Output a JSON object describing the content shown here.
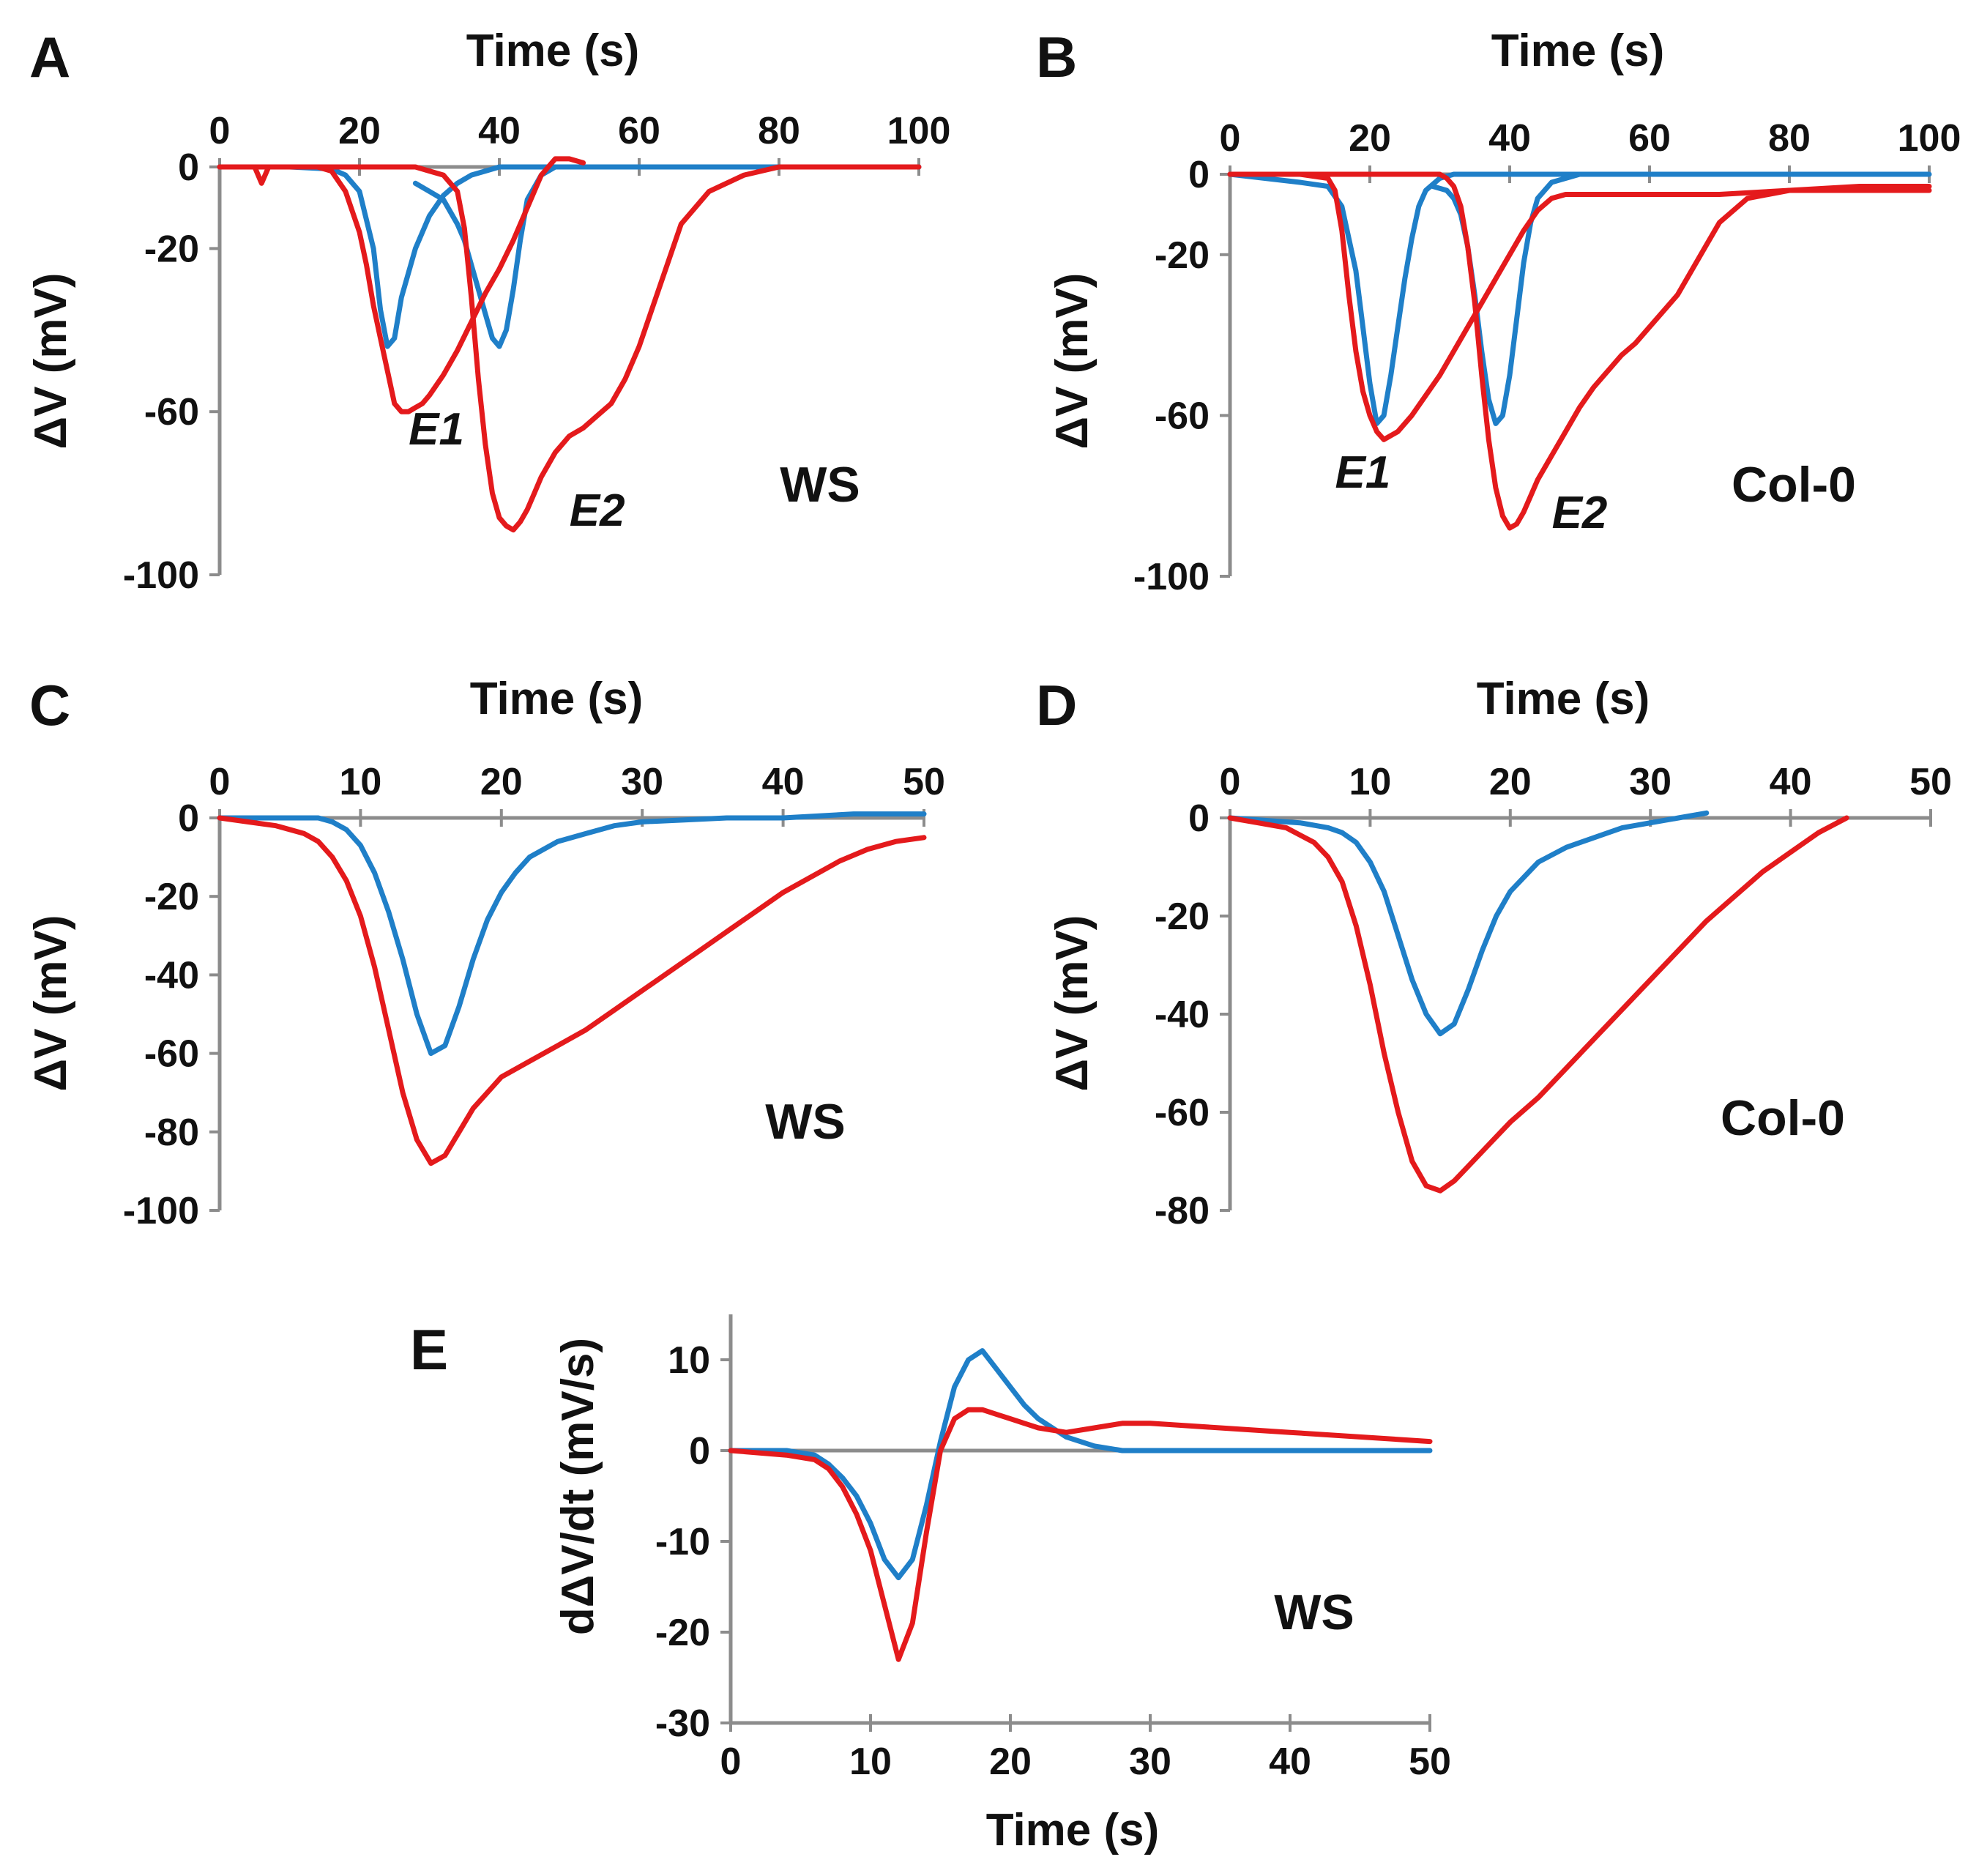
{
  "colors": {
    "control": "#1f7fc8",
    "treated": "#e41a1c",
    "axis": "#8c8c8c"
  },
  "chart_data": [
    {
      "panel": "A",
      "type": "line",
      "strain": "WS",
      "xlabel": "Time (s)",
      "ylabel": "ΔV (mV)",
      "xlim": [
        0,
        100
      ],
      "ylim": [
        -100,
        0
      ],
      "xticks": [
        0,
        20,
        40,
        60,
        80,
        100
      ],
      "yticks": [
        0,
        -20,
        -60,
        -100
      ],
      "x_axis_position": "top",
      "annotations": [
        {
          "text": "E1",
          "x": 31,
          "y": -68
        },
        {
          "text": "E2",
          "x": 54,
          "y": -88
        }
      ],
      "series": [
        {
          "name": "blue trace E1",
          "color": "#1f7fc8",
          "x": [
            0,
            10,
            16,
            18,
            20,
            22,
            23,
            24,
            25,
            26,
            28,
            30,
            32,
            34,
            36,
            38,
            40,
            42,
            45,
            50,
            60,
            80,
            100
          ],
          "y": [
            0,
            0,
            -0.5,
            -2,
            -6,
            -20,
            -35,
            -44,
            -42,
            -32,
            -20,
            -12,
            -7,
            -4,
            -2,
            -1,
            0,
            0,
            0,
            0,
            0,
            0,
            0
          ]
        },
        {
          "name": "blue trace E2",
          "color": "#1f7fc8",
          "x": [
            28,
            30,
            32,
            34,
            35,
            36,
            37,
            38,
            39,
            40,
            41,
            42,
            43,
            44,
            46,
            48,
            50
          ],
          "y": [
            -4,
            -6,
            -8,
            -14,
            -18,
            -24,
            -30,
            -36,
            -42,
            -44,
            -40,
            -30,
            -18,
            -8,
            -2,
            0,
            0
          ]
        },
        {
          "name": "red trace E1",
          "color": "#e41a1c",
          "x": [
            0,
            5,
            6,
            7,
            10,
            14,
            16,
            18,
            20,
            21,
            22,
            23,
            24,
            25,
            26,
            27,
            28,
            29,
            30,
            32,
            34,
            36,
            38,
            40,
            42,
            44,
            46,
            48,
            50,
            52
          ],
          "y": [
            0,
            0,
            -4,
            0,
            0,
            0,
            -1,
            -6,
            -16,
            -24,
            -34,
            -42,
            -50,
            -58,
            -60,
            -60,
            -59,
            -58,
            -56,
            -51,
            -45,
            -38,
            -31,
            -25,
            -18,
            -10,
            -2,
            2,
            2,
            1
          ]
        },
        {
          "name": "red trace E2",
          "color": "#e41a1c",
          "x": [
            0,
            20,
            26,
            28,
            30,
            32,
            34,
            35,
            36,
            37,
            38,
            39,
            40,
            41,
            42,
            43,
            44,
            45,
            46,
            48,
            50,
            52,
            54,
            56,
            58,
            60,
            62,
            64,
            66,
            70,
            75,
            80,
            90,
            100
          ],
          "y": [
            0,
            0,
            0,
            0,
            -1,
            -2,
            -6,
            -15,
            -32,
            -52,
            -68,
            -80,
            -86,
            -88,
            -89,
            -87,
            -84,
            -80,
            -76,
            -70,
            -66,
            -64,
            -61,
            -58,
            -52,
            -44,
            -34,
            -24,
            -14,
            -6,
            -2,
            0,
            0,
            0
          ]
        }
      ]
    },
    {
      "panel": "B",
      "type": "line",
      "strain": "Col-0",
      "xlabel": "Time (s)",
      "ylabel": "ΔV (mV)",
      "xlim": [
        0,
        100
      ],
      "ylim": [
        -100,
        0
      ],
      "xticks": [
        0,
        20,
        40,
        60,
        80,
        100
      ],
      "yticks": [
        0,
        -20,
        -60,
        -100
      ],
      "x_axis_position": "top",
      "annotations": [
        {
          "text": "E1",
          "x": 19,
          "y": -78
        },
        {
          "text": "E2",
          "x": 50,
          "y": -88
        }
      ],
      "series": [
        {
          "name": "blue trace E1",
          "color": "#1f7fc8",
          "x": [
            0,
            5,
            10,
            14,
            16,
            18,
            19,
            20,
            21,
            22,
            23,
            24,
            25,
            26,
            27,
            28,
            30,
            32,
            35,
            40,
            60,
            80,
            100
          ],
          "y": [
            0,
            -1,
            -2,
            -3,
            -8,
            -24,
            -38,
            -52,
            -62,
            -60,
            -50,
            -38,
            -26,
            -16,
            -8,
            -4,
            -1,
            0,
            0,
            0,
            0,
            0,
            0
          ]
        },
        {
          "name": "blue trace E2",
          "color": "#1f7fc8",
          "x": [
            29,
            31,
            32,
            33,
            34,
            35,
            36,
            37,
            38,
            39,
            40,
            41,
            42,
            43,
            44,
            46,
            48,
            50
          ],
          "y": [
            -3,
            -4,
            -6,
            -10,
            -18,
            -30,
            -44,
            -56,
            -62,
            -60,
            -50,
            -36,
            -22,
            -12,
            -6,
            -2,
            -1,
            0
          ]
        },
        {
          "name": "red trace E1",
          "color": "#e41a1c",
          "x": [
            0,
            10,
            14,
            15,
            16,
            17,
            18,
            19,
            20,
            21,
            22,
            24,
            26,
            28,
            30,
            32,
            34,
            36,
            38,
            40,
            42,
            44,
            46,
            48,
            50,
            55,
            60,
            70,
            80,
            90,
            100
          ],
          "y": [
            0,
            0,
            -1,
            -4,
            -14,
            -30,
            -44,
            -54,
            -60,
            -64,
            -66,
            -64,
            -60,
            -55,
            -50,
            -44,
            -38,
            -32,
            -26,
            -20,
            -14,
            -9,
            -6,
            -5,
            -5,
            -5,
            -5,
            -5,
            -4,
            -4,
            -4
          ]
        },
        {
          "name": "red trace E2",
          "color": "#e41a1c",
          "x": [
            0,
            20,
            28,
            30,
            31,
            32,
            33,
            34,
            35,
            36,
            37,
            38,
            39,
            40,
            41,
            42,
            43,
            44,
            46,
            48,
            50,
            52,
            54,
            56,
            58,
            60,
            62,
            64,
            66,
            68,
            70,
            74,
            80,
            90,
            100
          ],
          "y": [
            0,
            0,
            0,
            0,
            -1,
            -3,
            -8,
            -18,
            -32,
            -50,
            -66,
            -78,
            -85,
            -88,
            -87,
            -84,
            -80,
            -76,
            -70,
            -64,
            -58,
            -53,
            -49,
            -45,
            -42,
            -38,
            -34,
            -30,
            -24,
            -18,
            -12,
            -6,
            -4,
            -3,
            -3
          ]
        }
      ]
    },
    {
      "panel": "C",
      "type": "line",
      "strain": "WS",
      "xlabel": "Time (s)",
      "ylabel": "ΔV (mV)",
      "xlim": [
        0,
        50
      ],
      "ylim": [
        -100,
        0
      ],
      "xticks": [
        0,
        10,
        20,
        30,
        40,
        50
      ],
      "yticks": [
        0,
        -20,
        -40,
        -60,
        -80,
        -100
      ],
      "x_axis_position": "top",
      "series": [
        {
          "name": "blue trace",
          "color": "#1f7fc8",
          "x": [
            0,
            5,
            7,
            8,
            9,
            10,
            11,
            12,
            13,
            14,
            15,
            16,
            17,
            18,
            19,
            20,
            21,
            22,
            24,
            26,
            28,
            30,
            33,
            36,
            40,
            45,
            50
          ],
          "y": [
            0,
            0,
            0,
            -1,
            -3,
            -7,
            -14,
            -24,
            -36,
            -50,
            -60,
            -58,
            -48,
            -36,
            -26,
            -19,
            -14,
            -10,
            -6,
            -4,
            -2,
            -1,
            -0.5,
            0,
            0,
            1,
            1
          ]
        },
        {
          "name": "red trace",
          "color": "#e41a1c",
          "x": [
            0,
            2,
            4,
            6,
            7,
            8,
            9,
            10,
            11,
            12,
            13,
            14,
            15,
            16,
            17,
            18,
            19,
            20,
            22,
            24,
            26,
            28,
            30,
            32,
            34,
            36,
            38,
            40,
            42,
            44,
            46,
            48,
            50
          ],
          "y": [
            0,
            -1,
            -2,
            -4,
            -6,
            -10,
            -16,
            -25,
            -38,
            -54,
            -70,
            -82,
            -88,
            -86,
            -80,
            -74,
            -70,
            -66,
            -62,
            -58,
            -54,
            -49,
            -44,
            -39,
            -34,
            -29,
            -24,
            -19,
            -15,
            -11,
            -8,
            -6,
            -5
          ]
        }
      ]
    },
    {
      "panel": "D",
      "type": "line",
      "strain": "Col-0",
      "xlabel": "Time (s)",
      "ylabel": "ΔV (mV)",
      "xlim": [
        0,
        50
      ],
      "ylim": [
        -80,
        0
      ],
      "xticks": [
        0,
        10,
        20,
        30,
        40,
        50
      ],
      "yticks": [
        0,
        -20,
        -40,
        -60,
        -80
      ],
      "x_axis_position": "top",
      "series": [
        {
          "name": "blue trace",
          "color": "#1f7fc8",
          "x": [
            0,
            5,
            7,
            8,
            9,
            10,
            11,
            12,
            13,
            14,
            15,
            16,
            17,
            18,
            19,
            20,
            22,
            24,
            26,
            28,
            30,
            32,
            34
          ],
          "y": [
            0,
            -1,
            -2,
            -3,
            -5,
            -9,
            -15,
            -24,
            -33,
            -40,
            -44,
            -42,
            -35,
            -27,
            -20,
            -15,
            -9,
            -6,
            -4,
            -2,
            -1,
            0,
            1
          ]
        },
        {
          "name": "red trace",
          "color": "#e41a1c",
          "x": [
            0,
            2,
            4,
            6,
            7,
            8,
            9,
            10,
            11,
            12,
            13,
            14,
            15,
            16,
            17,
            18,
            20,
            22,
            24,
            26,
            28,
            30,
            32,
            34,
            36,
            38,
            40,
            42,
            44
          ],
          "y": [
            0,
            -1,
            -2,
            -5,
            -8,
            -13,
            -22,
            -34,
            -48,
            -60,
            -70,
            -75,
            -76,
            -74,
            -71,
            -68,
            -62,
            -57,
            -51,
            -45,
            -39,
            -33,
            -27,
            -21,
            -16,
            -11,
            -7,
            -3,
            0
          ]
        }
      ]
    },
    {
      "panel": "E",
      "type": "line",
      "strain": "WS",
      "xlabel": "Time (s)",
      "ylabel": "dΔV/dt (mV/s)",
      "xlim": [
        0,
        50
      ],
      "ylim": [
        -30,
        15
      ],
      "xticks": [
        0,
        10,
        20,
        30,
        40,
        50
      ],
      "yticks": [
        10,
        0,
        -10,
        -20,
        -30
      ],
      "x_axis_position": "bottom",
      "series": [
        {
          "name": "blue trace",
          "color": "#1f7fc8",
          "x": [
            0,
            4,
            6,
            7,
            8,
            9,
            10,
            11,
            12,
            13,
            14,
            15,
            16,
            17,
            18,
            19,
            20,
            21,
            22,
            24,
            26,
            28,
            30,
            35,
            40,
            50
          ],
          "y": [
            0,
            0,
            -0.5,
            -1.5,
            -3,
            -5,
            -8,
            -12,
            -14,
            -12,
            -6,
            1,
            7,
            10,
            11,
            9,
            7,
            5,
            3.5,
            1.5,
            0.5,
            0,
            0,
            0,
            0,
            0
          ]
        },
        {
          "name": "red trace",
          "color": "#e41a1c",
          "x": [
            0,
            4,
            6,
            7,
            8,
            9,
            10,
            11,
            12,
            13,
            14,
            15,
            16,
            17,
            18,
            19,
            20,
            22,
            24,
            26,
            28,
            30,
            32,
            35,
            40,
            45,
            50
          ],
          "y": [
            0,
            -0.5,
            -1,
            -2,
            -4,
            -7,
            -11,
            -17,
            -23,
            -19,
            -9,
            0,
            3.5,
            4.5,
            4.5,
            4,
            3.5,
            2.5,
            2,
            2.5,
            3,
            3,
            2.8,
            2.5,
            2,
            1.5,
            1
          ]
        }
      ]
    }
  ]
}
